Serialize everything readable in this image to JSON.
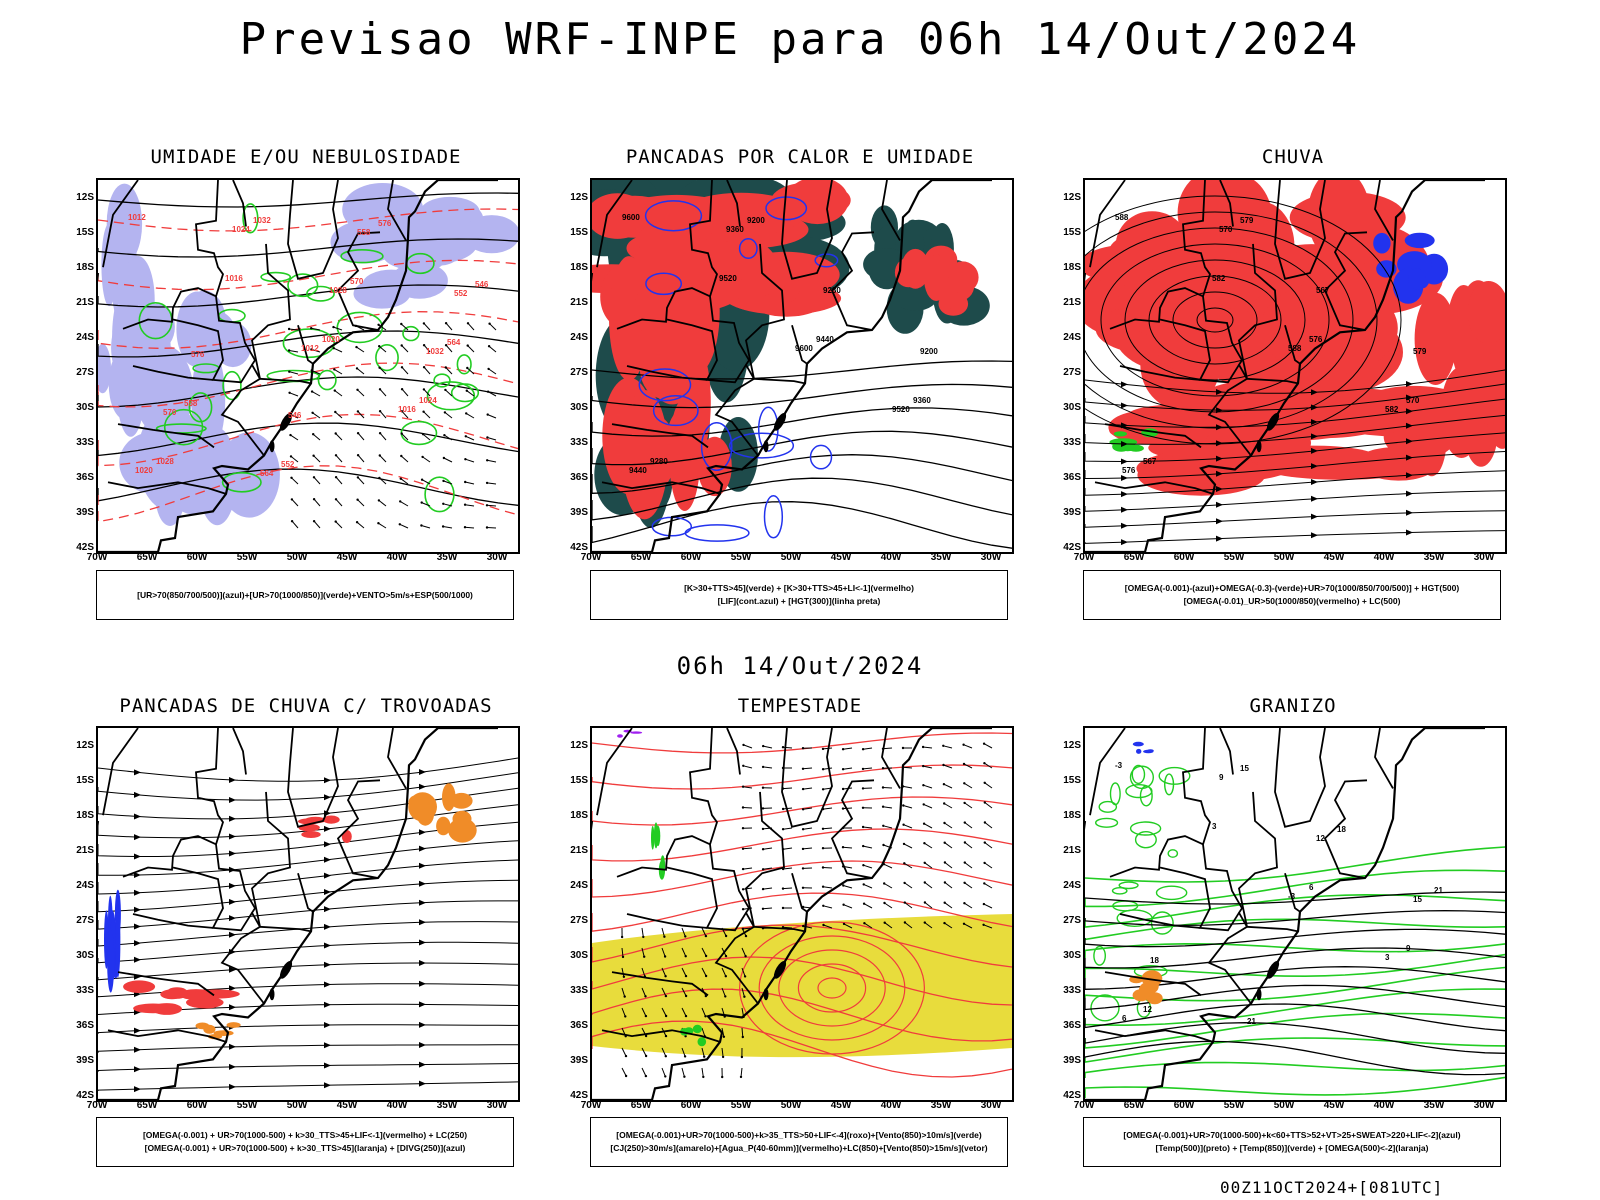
{
  "header": {
    "title": "Previsao WRF-INPE  para 06h 14/Out/2024"
  },
  "middle_title": "06h 14/Out/2024",
  "footer": "00Z11OCT2024+[081UTC]",
  "axes": {
    "lat_labels": [
      "12S",
      "15S",
      "18S",
      "21S",
      "24S",
      "27S",
      "30S",
      "33S",
      "36S",
      "39S",
      "42S"
    ],
    "lon_labels": [
      "70W",
      "65W",
      "60W",
      "55W",
      "50W",
      "45W",
      "40W",
      "35W",
      "30W"
    ]
  },
  "panels": [
    {
      "id": "umidade",
      "title": "UMIDADE E/OU NEBULOSIDADE",
      "legend": [
        "[UR>70(850/700/500)](azul)+[UR>70(1000/850)](verde)+VENTO>5m/s+ESP(500/1000)"
      ],
      "contour_labels": [
        "1012",
        "1016",
        "1020",
        "1024",
        "1028",
        "1032",
        "570",
        "564",
        "558",
        "552",
        "576",
        "546"
      ]
    },
    {
      "id": "pancadas-calor",
      "title": "PANCADAS POR CALOR E UMIDADE",
      "legend": [
        "[K>30+TTS>45](verde)  +  [K>30+TTS>45+LI<-1](vermelho)",
        "[LIF](cont.azul)  +  [HGT(300)](linha preta)"
      ],
      "contour_labels": [
        "9600",
        "9520",
        "9440",
        "9360",
        "9280",
        "9200"
      ]
    },
    {
      "id": "chuva",
      "title": "CHUVA",
      "legend": [
        "[OMEGA(-0.001)-(azul)+OMEGA(-0.3)-(verde)+UR>70(1000/850/700/500)]  +  HGT(500)",
        "[OMEGA(-0.01)_UR>50(1000/850)(vermelho)  +  LC(500)"
      ],
      "contour_labels": [
        "588",
        "582",
        "576",
        "570",
        "567",
        "579"
      ]
    },
    {
      "id": "trovoadas",
      "title": "PANCADAS DE CHUVA C/ TROVOADAS",
      "legend": [
        "[OMEGA(-0.001)  +  UR>70(1000-500)  +  k>30_TTS>45+LIF<-1](vermelho)  +  LC(250)",
        "[OMEGA(-0.001)  +  UR>70(1000-500)  +  k>30_TTS>45](laranja)  +  [DIVG(250)](azul)"
      ],
      "contour_labels": []
    },
    {
      "id": "tempestade",
      "title": "TEMPESTADE",
      "legend": [
        "[OMEGA(-0.001)+UR>70(1000-500)+k>35_TTS>50+LIF<-4](roxo)+[Vento(850)>10m/s](verde)",
        "[CJ(250)>30m/s](amarelo)+[Agua_P(40-60mm)](vermelho)+LC(850)+[Vento(850)>15m/s](vetor)"
      ],
      "contour_labels": []
    },
    {
      "id": "granizo",
      "title": "GRANIZO",
      "legend": [
        "[OMEGA(-0.001)+UR>70(1000-500)+k<60+TTS>52+VT>25+SWEAT>220+LIF<-2](azul)",
        "[Temp(500)](preto)  +  [Temp(850)](verde)  +  [OMEGA(500)<-2](laranja)"
      ],
      "contour_labels": [
        "-3",
        "3",
        "6",
        "9",
        "12",
        "15",
        "18",
        "21"
      ]
    }
  ],
  "colors": {
    "red": "#f03c3c",
    "green": "#22cc22",
    "blue": "#2233ee",
    "lavender": "#b4b4f0",
    "darkteal": "#1e4b4b",
    "yellow": "#e8dc3c",
    "orange": "#f08c28",
    "purple": "#a020f0"
  }
}
